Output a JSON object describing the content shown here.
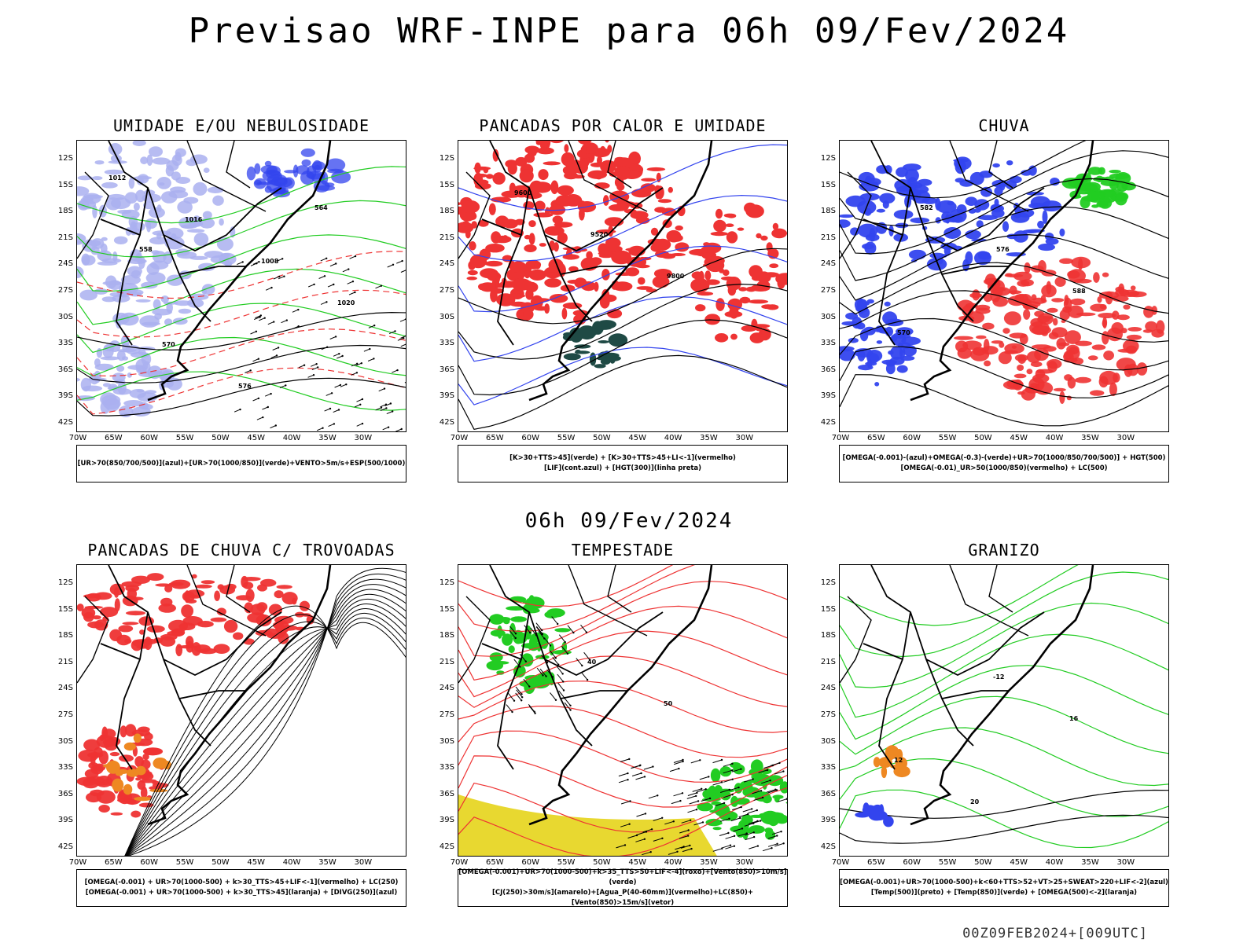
{
  "header": {
    "title": "Previsao WRF-INPE  para 06h 09/Fev/2024",
    "mid_title": "06h 09/Fev/2024",
    "footer": "00Z09FEB2024+[009UTC]"
  },
  "axes": {
    "lat_labels": [
      "12S",
      "15S",
      "18S",
      "21S",
      "24S",
      "27S",
      "30S",
      "33S",
      "36S",
      "39S",
      "42S"
    ],
    "lon_labels": [
      "70W",
      "65W",
      "60W",
      "55W",
      "50W",
      "45W",
      "40W",
      "35W",
      "30W"
    ]
  },
  "colors": {
    "blue": "#3344ee",
    "lightblue": "#aab0f0",
    "green": "#22cc22",
    "red": "#ee3333",
    "darkgreen": "#1f4a45",
    "orange": "#ee8822",
    "yellow": "#e8d830"
  },
  "panels": [
    {
      "title": "UMIDADE E/OU NEBULOSIDADE",
      "legend": [
        "[UR>70(850/700/500)](azul)+[UR>70(1000/850)](verde)+VENTO>5m/s+ESP(500/1000)"
      ],
      "contour_labels": [
        "1012",
        "1016",
        "1008",
        "1020",
        "570",
        "576",
        "564",
        "558"
      ]
    },
    {
      "title": "PANCADAS POR CALOR E UMIDADE",
      "legend": [
        "[K>30+TTS>45](verde) + [K>30+TTS>45+LI<-1](vermelho)",
        "[LIF](cont.azul) + [HGT(300)](linha preta)"
      ],
      "contour_labels": [
        "9600",
        "9520",
        "9800"
      ]
    },
    {
      "title": "CHUVA",
      "legend": [
        "[OMEGA(-0.001)-(azul)+OMEGA(-0.3)-(verde)+UR>70(1000/850/700/500)] + HGT(500)",
        "[OMEGA(-0.01)_UR>50(1000/850)(vermelho) + LC(500)"
      ],
      "contour_labels": [
        "582",
        "576",
        "588",
        "570"
      ]
    },
    {
      "title": "PANCADAS DE CHUVA C/ TROVOADAS",
      "legend": [
        "[OMEGA(-0.001) + UR>70(1000-500) + k>30_TTS>45+LIF<-1](vermelho) + LC(250)",
        "[OMEGA(-0.001) + UR>70(1000-500) + k>30_TTS>45](laranja) + [DIVG(250)](azul)"
      ],
      "contour_labels": []
    },
    {
      "title": "TEMPESTADE",
      "legend": [
        "[OMEGA(-0.001)+UR>70(1000-500)+k>35_TTS>50+LIF<-4](roxo)+[Vento(850)>10m/s](verde)",
        "[CJ(250)>30m/s](amarelo)+[Agua_P(40-60mm)](vermelho)+LC(850)+[Vento(850)>15m/s](vetor)"
      ],
      "contour_labels": [
        "40",
        "50"
      ]
    },
    {
      "title": "GRANIZO",
      "legend": [
        "[OMEGA(-0.001)+UR>70(1000-500)+k<60+TTS>52+VT>25+SWEAT>220+LIF<-2](azul)",
        "[Temp(500)](preto) + [Temp(850)](verde) + [OMEGA(500)<-2](laranja)"
      ],
      "contour_labels": [
        "-12",
        "16",
        "12",
        "20"
      ]
    }
  ]
}
